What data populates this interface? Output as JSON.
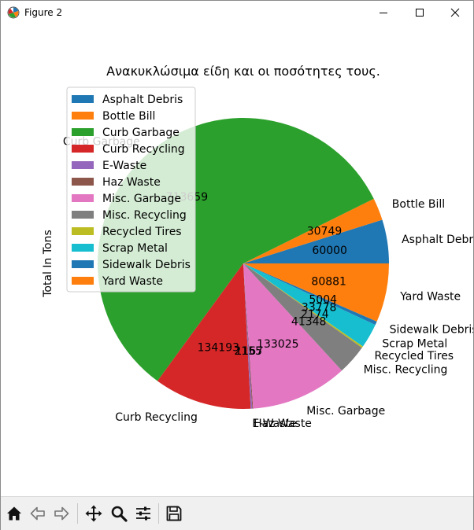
{
  "window": {
    "title": "Figure 2"
  },
  "toolbar": {
    "buttons": [
      "home-icon",
      "back-arrow-icon",
      "forward-arrow-icon",
      "pan-icon",
      "zoom-icon",
      "configure-subplots-icon",
      "save-icon"
    ]
  },
  "chart_data": {
    "type": "pie",
    "title": "Ανακυκλώσιμα είδη και οι ποσότητες τους.",
    "ylabel": "Total In Tons",
    "legend_placement": "upper-left",
    "startangle": 0,
    "categories": [
      "Asphalt Debris",
      "Bottle Bill",
      "Curb Garbage",
      "Curb Recycling",
      "E-Waste",
      "Haz Waste",
      "Misc. Garbage",
      "Misc. Recycling",
      "Recycled Tires",
      "Scrap Metal",
      "Sidewalk Debris",
      "Yard Waste"
    ],
    "values": [
      60000,
      30749,
      713659,
      134193,
      2155,
      1167,
      133025,
      41348,
      2174,
      33778,
      5004,
      80881
    ],
    "value_labels": [
      "60000",
      "30749",
      "713659",
      "134193",
      "2155",
      "1167",
      "133025",
      "41348",
      "2174",
      "33778",
      "5004",
      "80881"
    ],
    "colors": [
      "#1f77b4",
      "#ff7f0e",
      "#2ca02c",
      "#d62728",
      "#9467bd",
      "#8c564b",
      "#e377c2",
      "#7f7f7f",
      "#bcbd22",
      "#17becf",
      "#1f77b4",
      "#ff7f0e"
    ]
  }
}
